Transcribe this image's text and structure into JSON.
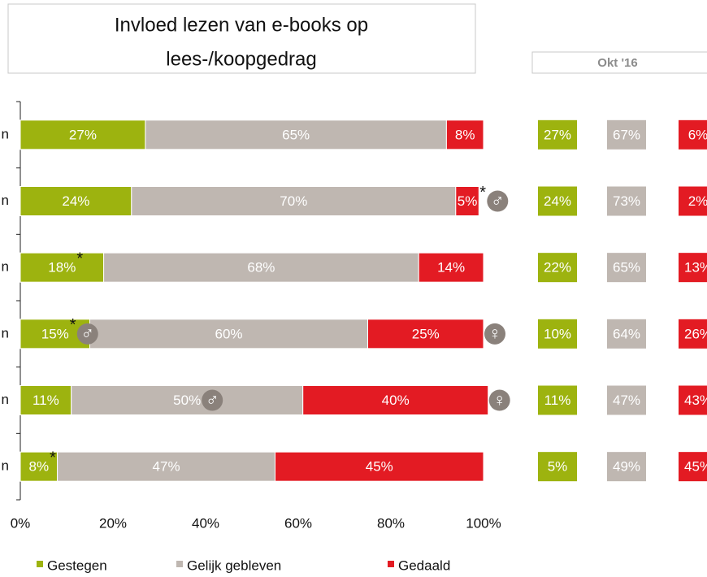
{
  "chart_data": {
    "type": "stacked_bar_horizontal",
    "title": [
      "Invloed lezen van e-books op",
      "lees-/koopgedrag"
    ],
    "categories": [
      "n",
      "n",
      "n",
      "n",
      "n",
      "n"
    ],
    "series": [
      {
        "name": "Gestegen",
        "color": "#9db30f",
        "values": [
          27,
          24,
          18,
          15,
          11,
          8
        ],
        "value_labels": [
          "27%",
          "24%",
          "18%",
          "15%",
          "11%",
          "8%"
        ]
      },
      {
        "name": "Gelijk gebleven",
        "color": "#bfb7b1",
        "values": [
          65,
          70,
          68,
          60,
          50,
          47
        ],
        "value_labels": [
          "65%",
          "70%",
          "68%",
          "60%",
          "50%",
          "47%"
        ]
      },
      {
        "name": "Gedaald",
        "color": "#e31b23",
        "values": [
          8,
          5,
          14,
          25,
          40,
          45
        ],
        "value_labels": [
          "8%",
          "5%",
          "14%",
          "25%",
          "40%",
          "45%"
        ]
      }
    ],
    "xlim": [
      0,
      100
    ],
    "xticks": [
      {
        "value": 0,
        "label": "0%"
      },
      {
        "value": 20,
        "label": "20%"
      },
      {
        "value": 40,
        "label": "40%"
      },
      {
        "value": 60,
        "label": "60%"
      },
      {
        "value": 80,
        "label": "80%"
      },
      {
        "value": 100,
        "label": "100%"
      }
    ],
    "annotations": [
      {
        "text": "*",
        "series": 2,
        "index": 1
      },
      {
        "text": "♂",
        "series": 2,
        "index": 1
      },
      {
        "text": "*",
        "series": 0,
        "index": 2
      },
      {
        "text": "*",
        "series": 0,
        "index": 3
      },
      {
        "text": "♂",
        "series": 0,
        "index": 3
      },
      {
        "text": "♀",
        "series": 2,
        "index": 3
      },
      {
        "text": "♂",
        "series": 1,
        "index": 4
      },
      {
        "text": "♀",
        "series": 2,
        "index": 4
      },
      {
        "text": "*",
        "series": 0,
        "index": 5
      }
    ],
    "comparison": {
      "label": "Okt '16",
      "series": [
        {
          "values": [
            27,
            24,
            22,
            10,
            11,
            5
          ],
          "value_labels": [
            "27%",
            "24%",
            "22%",
            "10%",
            "11%",
            "5%"
          ]
        },
        {
          "values": [
            67,
            73,
            65,
            64,
            47,
            49
          ],
          "value_labels": [
            "67%",
            "73%",
            "65%",
            "64%",
            "47%",
            "49%"
          ]
        },
        {
          "values": [
            6,
            2,
            13,
            26,
            43,
            45
          ],
          "value_labels": [
            "6%",
            "2%",
            "13%",
            "26%",
            "43%",
            "45%"
          ]
        }
      ]
    },
    "legend": "bottom"
  }
}
